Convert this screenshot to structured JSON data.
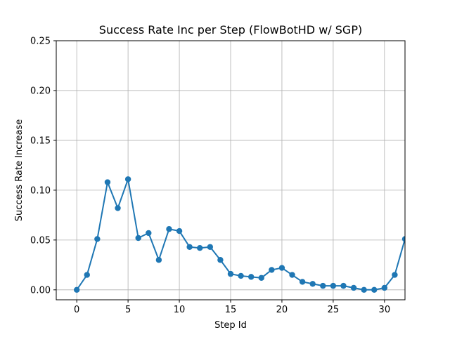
{
  "chart_data": {
    "type": "line",
    "title": "Success Rate Inc per Step (FlowBotHD w/ SGP)",
    "xlabel": "Step Id",
    "ylabel": "Success Rate Increase",
    "xlim": [
      -2,
      32
    ],
    "ylim": [
      -0.01,
      0.25
    ],
    "xticks": [
      0,
      5,
      10,
      15,
      20,
      25,
      30
    ],
    "yticks": [
      0.0,
      0.05,
      0.1,
      0.15,
      0.2,
      0.25
    ],
    "xtick_labels": [
      "0",
      "5",
      "10",
      "15",
      "20",
      "25",
      "30"
    ],
    "ytick_labels": [
      "0.00",
      "0.05",
      "0.10",
      "0.15",
      "0.20",
      "0.25"
    ],
    "grid": true,
    "series": [
      {
        "color": "#1f77b4",
        "marker": "circle",
        "x": [
          0,
          1,
          2,
          3,
          4,
          5,
          6,
          7,
          8,
          9,
          10,
          11,
          12,
          13,
          14,
          15,
          16,
          17,
          18,
          19,
          20,
          21,
          22,
          23,
          24,
          25,
          26,
          27,
          28,
          29,
          30,
          31,
          32
        ],
        "y": [
          0.0,
          0.015,
          0.051,
          0.108,
          0.082,
          0.111,
          0.052,
          0.057,
          0.03,
          0.061,
          0.059,
          0.043,
          0.042,
          0.043,
          0.03,
          0.016,
          0.014,
          0.013,
          0.012,
          0.02,
          0.022,
          0.015,
          0.008,
          0.006,
          0.004,
          0.004,
          0.004,
          0.002,
          0.0,
          0.0,
          0.002,
          0.015,
          0.051
        ]
      }
    ]
  }
}
